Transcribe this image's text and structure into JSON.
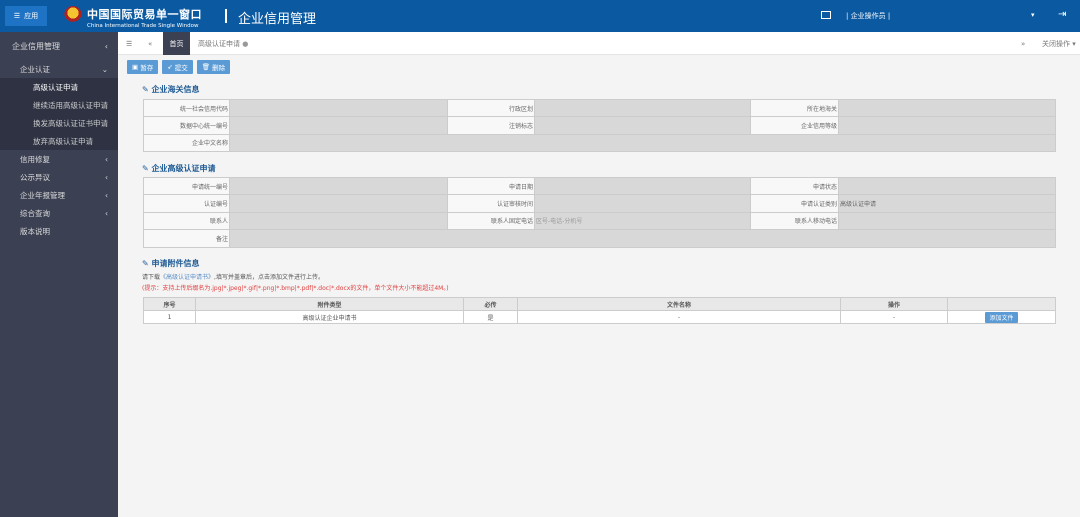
{
  "header": {
    "app_button": "应用",
    "brand_cn": "中国国际贸易单一窗口",
    "brand_en": "China International Trade Single Window",
    "title": "企业信用管理",
    "user": "企业操作员",
    "dropdown": "▾",
    "logout": "⇥"
  },
  "sidebar": {
    "root": "企业信用管理",
    "group": "企业认证",
    "sub": [
      "高级认证申请",
      "继续适用高级认证申请",
      "换发高级认证证书申请",
      "放弃高级认证申请"
    ],
    "items": [
      "信用修复",
      "公示异议",
      "企业年报管理",
      "综合查询",
      "版本说明"
    ]
  },
  "tabs": {
    "home": "首页",
    "current": "高级认证申请",
    "close_ops": "关闭操作"
  },
  "toolbar": {
    "save": "暂存",
    "submit": "提交",
    "delete": "删除"
  },
  "section1": {
    "title": "企业海关信息",
    "rows": [
      [
        "统一社会信用代码",
        "",
        "行政区划",
        "",
        "所在地海关",
        ""
      ],
      [
        "数据中心统一编号",
        "",
        "注销标志",
        "",
        "企业信用等级",
        ""
      ]
    ],
    "full_label": "企业中文名称"
  },
  "section2": {
    "title": "企业高级认证申请",
    "rows": [
      [
        "申请统一编号",
        "",
        "申请日期",
        "",
        "申请状态",
        ""
      ],
      [
        "认证编号",
        "",
        "认证审核时间",
        "",
        "申请认证类别",
        "高级认证申请"
      ],
      [
        "联系人",
        "",
        "联系人固定电话",
        "区号-电话-分机号",
        "联系人移动电话",
        ""
      ]
    ],
    "full_label": "备注"
  },
  "section3": {
    "title": "申请附件信息",
    "note_prefix": "请下载",
    "note_link": "《高级认证申请书》",
    "note_suffix": ",填写并盖章后，点击添加文件进行上传。",
    "hint": "(提示：支持上传后缀名为.jpg|*.jpeg|*.gif|*.png|*.bmp|*.pdf|*.doc|*.docx的文件，单个文件大小不能超过4M。)",
    "headers": [
      "序号",
      "附件类型",
      "必传",
      "文件名称",
      "操作",
      ""
    ],
    "rows": [
      [
        "1",
        "高级认证企业申请书",
        "是",
        "-",
        "-"
      ]
    ],
    "add_button": "添加文件"
  }
}
